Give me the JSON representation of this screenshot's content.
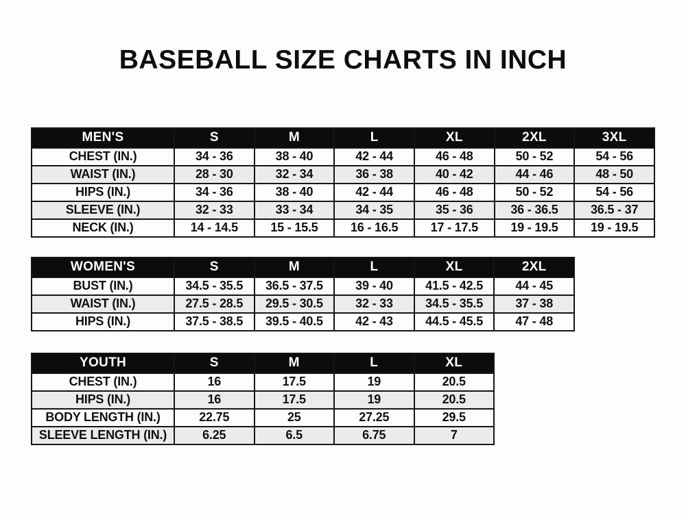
{
  "page": {
    "title": "BASEBALL SIZE CHARTS IN INCH"
  },
  "colors": {
    "header_bg": "#0c0c0c",
    "header_text": "#ffffff",
    "row_alt_bg": "#ebebeb",
    "border": "#161616",
    "page_bg": "#fdfdfd"
  },
  "tables": [
    {
      "name": "mens",
      "header": [
        "MEN'S",
        "S",
        "M",
        "L",
        "XL",
        "2XL",
        "3XL"
      ],
      "rows": [
        {
          "label": "CHEST (IN.)",
          "values": [
            "34 - 36",
            "38 - 40",
            "42 - 44",
            "46 - 48",
            "50 - 52",
            "54 - 56"
          ]
        },
        {
          "label": "WAIST (IN.)",
          "values": [
            "28 - 30",
            "32 - 34",
            "36 - 38",
            "40 - 42",
            "44 - 46",
            "48 - 50"
          ]
        },
        {
          "label": "HIPS (IN.)",
          "values": [
            "34 - 36",
            "38 - 40",
            "42 - 44",
            "46 - 48",
            "50 - 52",
            "54 - 56"
          ]
        },
        {
          "label": "SLEEVE (IN.)",
          "values": [
            "32 - 33",
            "33 - 34",
            "34 - 35",
            "35 - 36",
            "36 - 36.5",
            "36.5 - 37"
          ]
        },
        {
          "label": "NECK (IN.)",
          "values": [
            "14 - 14.5",
            "15 - 15.5",
            "16 - 16.5",
            "17 - 17.5",
            "19 - 19.5",
            "19 - 19.5"
          ]
        }
      ]
    },
    {
      "name": "womens",
      "header": [
        "WOMEN'S",
        "S",
        "M",
        "L",
        "XL",
        "2XL"
      ],
      "rows": [
        {
          "label": "BUST (IN.)",
          "values": [
            "34.5 - 35.5",
            "36.5 - 37.5",
            "39 - 40",
            "41.5 - 42.5",
            "44 - 45"
          ]
        },
        {
          "label": "WAIST (IN.)",
          "values": [
            "27.5 - 28.5",
            "29.5 - 30.5",
            "32 - 33",
            "34.5 - 35.5",
            "37 - 38"
          ]
        },
        {
          "label": "HIPS (IN.)",
          "values": [
            "37.5 - 38.5",
            "39.5 - 40.5",
            "42 - 43",
            "44.5 - 45.5",
            "47 - 48"
          ]
        }
      ]
    },
    {
      "name": "youth",
      "header": [
        "YOUTH",
        "S",
        "M",
        "L",
        "XL"
      ],
      "rows": [
        {
          "label": "CHEST (IN.)",
          "values": [
            "16",
            "17.5",
            "19",
            "20.5"
          ]
        },
        {
          "label": "HIPS (IN.)",
          "values": [
            "16",
            "17.5",
            "19",
            "20.5"
          ]
        },
        {
          "label": "BODY LENGTH (IN.)",
          "values": [
            "22.75",
            "25",
            "27.25",
            "29.5"
          ]
        },
        {
          "label": "SLEEVE LENGTH (IN.)",
          "values": [
            "6.25",
            "6.5",
            "6.75",
            "7"
          ]
        }
      ]
    }
  ]
}
